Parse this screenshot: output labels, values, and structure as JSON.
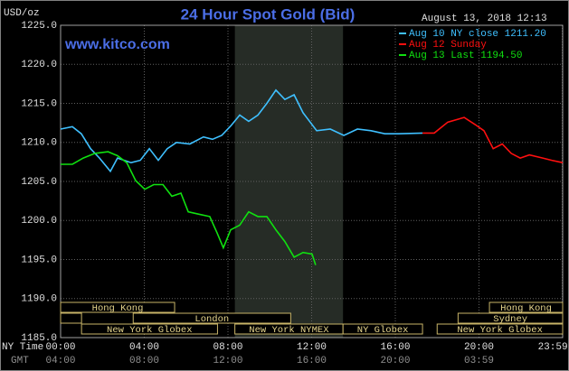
{
  "chart_data": {
    "type": "line",
    "title": "24 Hour Spot Gold (Bid)",
    "subtitle": "August 13, 2018 12:13",
    "annotation": "www.kitco.com",
    "y_label": "USD/oz",
    "x_label": "NY Time",
    "x2_label": "GMT",
    "xlim": [
      0,
      24
    ],
    "ylim": [
      1185,
      1225
    ],
    "grid": true,
    "legend": "top-right",
    "xticks": [
      {
        "value": 0,
        "label": "00:00"
      },
      {
        "value": 4,
        "label": "04:00"
      },
      {
        "value": 8,
        "label": "08:00"
      },
      {
        "value": 12,
        "label": "12:00"
      },
      {
        "value": 16,
        "label": "16:00"
      },
      {
        "value": 20,
        "label": "20:00"
      },
      {
        "value": 23.983,
        "label": "23:59"
      }
    ],
    "x2_labels": [
      "04:00",
      "08:00",
      "12:00",
      "16:00",
      "20:00",
      "03:59"
    ],
    "yticks": [
      {
        "value": 1185,
        "label": "1185.0"
      },
      {
        "value": 1190,
        "label": "1190.0"
      },
      {
        "value": 1195,
        "label": "1195.0"
      },
      {
        "value": 1200,
        "label": "1200.0"
      },
      {
        "value": 1205,
        "label": "1205.0"
      },
      {
        "value": 1210,
        "label": "1210.0"
      },
      {
        "value": 1215,
        "label": "1215.0"
      },
      {
        "value": 1220,
        "label": "1220.0"
      },
      {
        "value": 1225,
        "label": "1225.0"
      }
    ],
    "shaded": {
      "start": 8.33,
      "end": 13.5
    },
    "session_rows": [
      [
        {
          "label": "Hong Kong",
          "start": 0,
          "end": 5.45
        },
        {
          "label": "Hong Kong",
          "start": 20.5,
          "end": 24
        }
      ],
      [
        {
          "label": null,
          "start": 0,
          "end": 1
        },
        {
          "label": "London",
          "start": 3.47,
          "end": 11
        },
        {
          "label": "Sydney",
          "start": 19,
          "end": 24
        }
      ],
      [
        {
          "label": "New York Globex",
          "start": 1,
          "end": 7.5
        },
        {
          "label": "New York NYMEX",
          "start": 8.33,
          "end": 13.5
        },
        {
          "label": "NY Globex",
          "start": 13.5,
          "end": 17.3
        },
        {
          "label": "New York Globex",
          "start": 18,
          "end": 24
        }
      ]
    ],
    "series": [
      {
        "name": "Aug 10 NY close 1211.20",
        "color": "#3fc0ff",
        "x": [
          0,
          0.56,
          0.99,
          1.43,
          1.86,
          2.38,
          2.72,
          3.37,
          3.81,
          4.24,
          4.67,
          5.1,
          5.54,
          6.18,
          6.83,
          7.26,
          7.7,
          8.13,
          8.56,
          8.99,
          9.43,
          9.86,
          10.29,
          10.72,
          11.16,
          11.59,
          12.24,
          12.89,
          13.54,
          14.19,
          14.84,
          15.5,
          16.15,
          17.3
        ],
        "values": [
          1211.7,
          1212.0,
          1211.1,
          1209.2,
          1208.0,
          1206.3,
          1208.0,
          1207.4,
          1207.7,
          1209.2,
          1207.7,
          1209.2,
          1210.0,
          1209.8,
          1210.7,
          1210.4,
          1210.9,
          1212.1,
          1213.5,
          1212.7,
          1213.5,
          1215.0,
          1216.7,
          1215.5,
          1216.1,
          1213.8,
          1211.5,
          1211.7,
          1210.9,
          1211.7,
          1211.5,
          1211.1,
          1211.1,
          1211.2
        ]
      },
      {
        "name": "Aug 12 Sunday",
        "color": "#ff1010",
        "x": [
          17.3,
          17.86,
          18.51,
          19.29,
          19.81,
          20.24,
          20.68,
          21.11,
          21.54,
          21.97,
          22.41,
          23.05,
          23.48,
          24.0
        ],
        "values": [
          1211.2,
          1211.2,
          1212.6,
          1213.2,
          1212.3,
          1211.5,
          1209.2,
          1209.8,
          1208.6,
          1208.0,
          1208.4,
          1208.0,
          1207.7,
          1207.4
        ]
      },
      {
        "name": "Aug 13 Last 1194.50",
        "color": "#10e010",
        "x": [
          0,
          0.56,
          1.08,
          1.64,
          2.27,
          2.72,
          3.16,
          3.59,
          4.02,
          4.45,
          4.89,
          5.32,
          5.75,
          6.1,
          6.61,
          7.13,
          7.48,
          7.78,
          8.13,
          8.56,
          8.99,
          9.43,
          9.86,
          10.29,
          10.72,
          11.16,
          11.59,
          12.02,
          12.19
        ],
        "values": [
          1207.2,
          1207.2,
          1208.0,
          1208.6,
          1208.8,
          1208.3,
          1207.4,
          1205.1,
          1204.0,
          1204.6,
          1204.6,
          1203.1,
          1203.5,
          1201.1,
          1200.8,
          1200.5,
          1198.4,
          1196.5,
          1198.8,
          1199.4,
          1201.1,
          1200.5,
          1200.5,
          1198.8,
          1197.3,
          1195.3,
          1195.9,
          1195.7,
          1194.3
        ]
      }
    ]
  }
}
